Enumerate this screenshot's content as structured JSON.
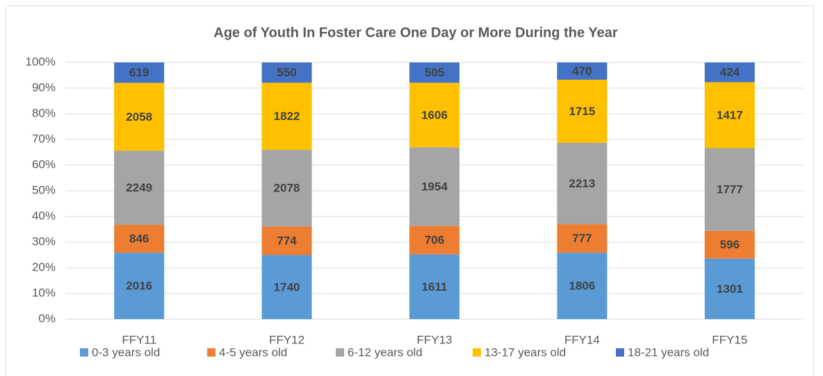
{
  "chart_data": {
    "type": "bar",
    "stacking": "percent",
    "title": "Age of Youth In Foster Care One Day or More During the Year",
    "categories": [
      "FFY11",
      "FFY12",
      "FFY13",
      "FFY14",
      "FFY15"
    ],
    "series": [
      {
        "name": "0-3 years old",
        "color": "#5b9bd5",
        "values": [
          2016,
          1740,
          1611,
          1806,
          1301
        ]
      },
      {
        "name": "4-5 years old",
        "color": "#ed7d31",
        "values": [
          846,
          774,
          706,
          777,
          596
        ]
      },
      {
        "name": "6-12 years old",
        "color": "#a5a5a5",
        "values": [
          2249,
          2078,
          1954,
          2213,
          1777
        ]
      },
      {
        "name": "13-17 years old",
        "color": "#ffc000",
        "values": [
          2058,
          1822,
          1606,
          1715,
          1417
        ]
      },
      {
        "name": "18-21 years old",
        "color": "#4472c4",
        "values": [
          619,
          550,
          505,
          470,
          424
        ]
      }
    ],
    "ylim": [
      0,
      100
    ],
    "yticks": [
      {
        "value": 0,
        "label": "0%"
      },
      {
        "value": 10,
        "label": "10%"
      },
      {
        "value": 20,
        "label": "20%"
      },
      {
        "value": 30,
        "label": "30%"
      },
      {
        "value": 40,
        "label": "40%"
      },
      {
        "value": 50,
        "label": "50%"
      },
      {
        "value": 60,
        "label": "60%"
      },
      {
        "value": 70,
        "label": "70%"
      },
      {
        "value": 80,
        "label": "80%"
      },
      {
        "value": 90,
        "label": "90%"
      },
      {
        "value": 100,
        "label": "100%"
      }
    ],
    "grid": true,
    "legend": "bottom"
  }
}
